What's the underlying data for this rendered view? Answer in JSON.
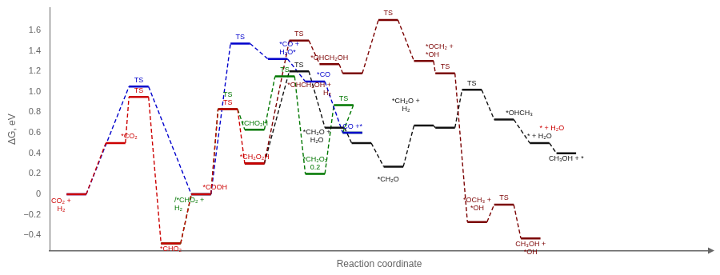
{
  "chart_data": {
    "type": "line",
    "y_label": "ΔG, eV",
    "x_label": "Reaction coordinate",
    "xlim": [
      -0.5,
      36.5
    ],
    "ylim": [
      -0.55,
      1.82
    ],
    "yticks": [
      {
        "value": -0.4,
        "label": "−0.4"
      },
      {
        "value": -0.2,
        "label": "−0.2"
      },
      0,
      0.2,
      0.4,
      0.6,
      0.8,
      {
        "value": 1.0,
        "label": "1.0"
      },
      1.2,
      1.4,
      1.6
    ],
    "grid": false,
    "tick_labels": "y",
    "series": [
      {
        "color": "#cc0000",
        "x": [
          1.0,
          3.2,
          4.5,
          6.3,
          8.0,
          9.5,
          11.0
        ],
        "values": [
          0.0,
          0.5,
          0.95,
          -0.48,
          0.0,
          0.83,
          0.3
        ],
        "labels": [
          {
            "text": "CO₂ +\nH₂",
            "x": 0.0,
            "y": -0.03
          },
          {
            "text": "*CO₂",
            "x": 3.5,
            "y": 0.52
          },
          {
            "text": "TS",
            "x": 4.5,
            "y": 0.97
          },
          {
            "text": "*CHO₂",
            "x": 6.3,
            "y": -0.5
          },
          {
            "text": "*COOH",
            "x": 8.1,
            "y": 0.02
          },
          {
            "text": "TS",
            "x": 9.5,
            "y": 0.85
          },
          {
            "text": "*CH₂O₂H",
            "x": 11.0,
            "y": 0.32
          }
        ]
      },
      {
        "color": "#0000cc",
        "x": [
          1.0,
          4.5,
          8.0,
          10.2,
          12.3,
          14.4,
          16.5
        ],
        "values": [
          0.0,
          1.05,
          0.0,
          1.47,
          1.32,
          1.1,
          0.6
        ],
        "labels": [
          null,
          {
            "text": "TS",
            "x": 4.5,
            "y": 1.07
          },
          null,
          {
            "text": "TS",
            "x": 10.2,
            "y": 1.49
          },
          {
            "text": "*CO +\nH₂O*",
            "x": 12.4,
            "y": 1.34
          },
          {
            "text": "*CO",
            "x": 14.5,
            "y": 1.12
          },
          {
            "text": "CO +*",
            "x": 16.5,
            "y": 0.62
          }
        ]
      },
      {
        "color": "#007700",
        "x": [
          6.3,
          8.0,
          9.5,
          11.0,
          12.7,
          14.4,
          16.0,
          16.5
        ],
        "values": [
          -0.48,
          0.0,
          0.83,
          0.63,
          1.15,
          0.2,
          0.87,
          0.6
        ],
        "labels": [
          {
            "text": "/*CHO₂ +\nH₂",
            "x": 6.5,
            "y": -0.18
          },
          null,
          {
            "text": "TS",
            "x": 9.5,
            "y": 0.85
          },
          {
            "text": "*CHO₂H",
            "x": 11.0,
            "y": 0.65
          },
          {
            "text": "TS",
            "x": 12.7,
            "y": 1.17
          },
          {
            "text": "*CH₂O₂\n0.2",
            "x": 14.4,
            "y": 0.22
          },
          {
            "text": "TS",
            "x": 16.0,
            "y": 0.89
          },
          null
        ]
      },
      {
        "color": "#7b0000",
        "x": [
          11.0,
          13.5,
          15.2,
          16.5,
          18.5,
          20.5,
          21.7,
          23.5,
          25.0,
          26.5
        ],
        "values": [
          0.3,
          1.5,
          1.27,
          1.18,
          1.7,
          1.3,
          1.18,
          -0.27,
          -0.1,
          -0.43
        ],
        "labels": [
          null,
          {
            "text": "TS",
            "x": 13.5,
            "y": 1.52
          },
          {
            "text": "*OHCH₂OH",
            "x": 15.2,
            "y": 1.29
          },
          {
            "text": "*OHCH₂OH +\nH₂",
            "x": 15.3,
            "y": 1.1
          },
          {
            "text": "TS",
            "x": 18.5,
            "y": 1.72
          },
          {
            "text": "*OCH₂ +\n*OH",
            "x": 20.6,
            "y": 1.32
          },
          {
            "text": "TS",
            "x": 21.7,
            "y": 1.2
          },
          {
            "text": "*OCH₃ +\n*OH",
            "x": 23.5,
            "y": -0.18
          },
          {
            "text": "TS",
            "x": 25.0,
            "y": -0.08
          },
          {
            "text": "CH₃OH +\n*OH",
            "x": 26.5,
            "y": -0.45
          }
        ]
      },
      {
        "color": "#111111",
        "x": [
          11.0,
          13.5,
          15.5,
          17.0,
          18.8,
          20.5,
          21.7,
          23.2,
          25.0,
          27.0,
          28.5
        ],
        "values": [
          0.3,
          1.2,
          0.65,
          0.5,
          0.27,
          0.67,
          0.65,
          1.02,
          0.73,
          0.5,
          0.4
        ],
        "labels": [
          null,
          {
            "text": "TS",
            "x": 13.5,
            "y": 1.22
          },
          {
            "text": "*CH₂O +\nH₂O",
            "x": 14.5,
            "y": 0.64
          },
          null,
          {
            "text": "*CH₂O",
            "x": 18.5,
            "y": 0.18
          },
          {
            "text": "*CH₂O +\nH₂",
            "x": 19.5,
            "y": 0.79
          },
          null,
          {
            "text": "TS",
            "x": 23.2,
            "y": 1.04
          },
          {
            "text": "*OHCH₃",
            "x": 25.1,
            "y": 0.75
          },
          {
            "text": "* + H₂O",
            "x": 27.0,
            "y": 0.52
          },
          {
            "text": "CH₃OH + *",
            "x": 28.5,
            "y": 0.38
          }
        ]
      }
    ],
    "annotations": [
      {
        "text": "* + H₂O",
        "x": 27.0,
        "y": 0.52,
        "color": "#cc0000"
      }
    ]
  }
}
